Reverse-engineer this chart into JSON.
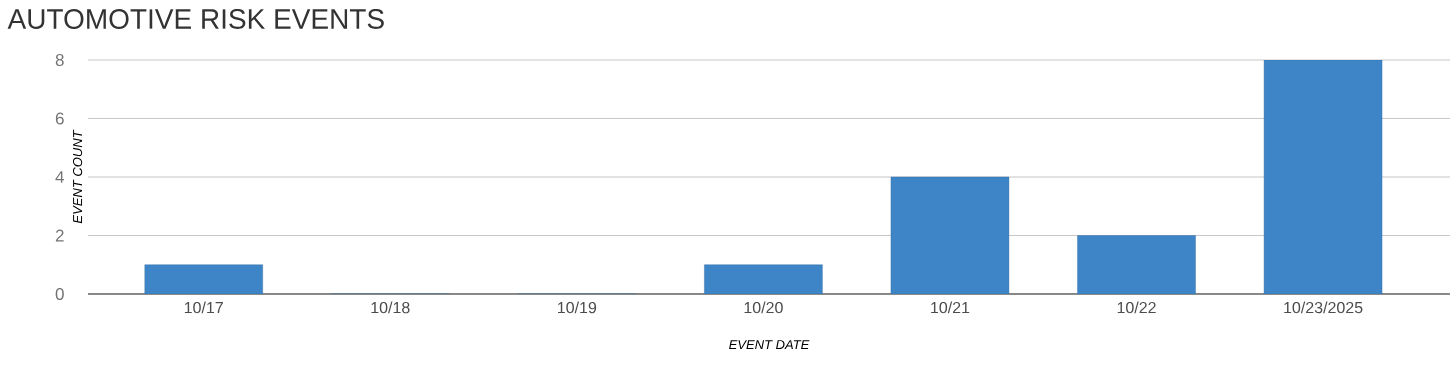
{
  "chart_data": {
    "type": "bar",
    "title": "AUTOMOTIVE RISK EVENTS",
    "xlabel": "EVENT DATE",
    "ylabel": "EVENT COUNT",
    "categories": [
      "10/17",
      "10/18",
      "10/19",
      "10/20",
      "10/21",
      "10/22",
      "10/23/2025"
    ],
    "values": [
      1,
      0,
      0,
      1,
      4,
      2,
      8
    ],
    "color": "#3d85c6",
    "ylim": [
      0,
      8
    ],
    "yticks": [
      0,
      2,
      4,
      6,
      8
    ],
    "grid": "y"
  }
}
